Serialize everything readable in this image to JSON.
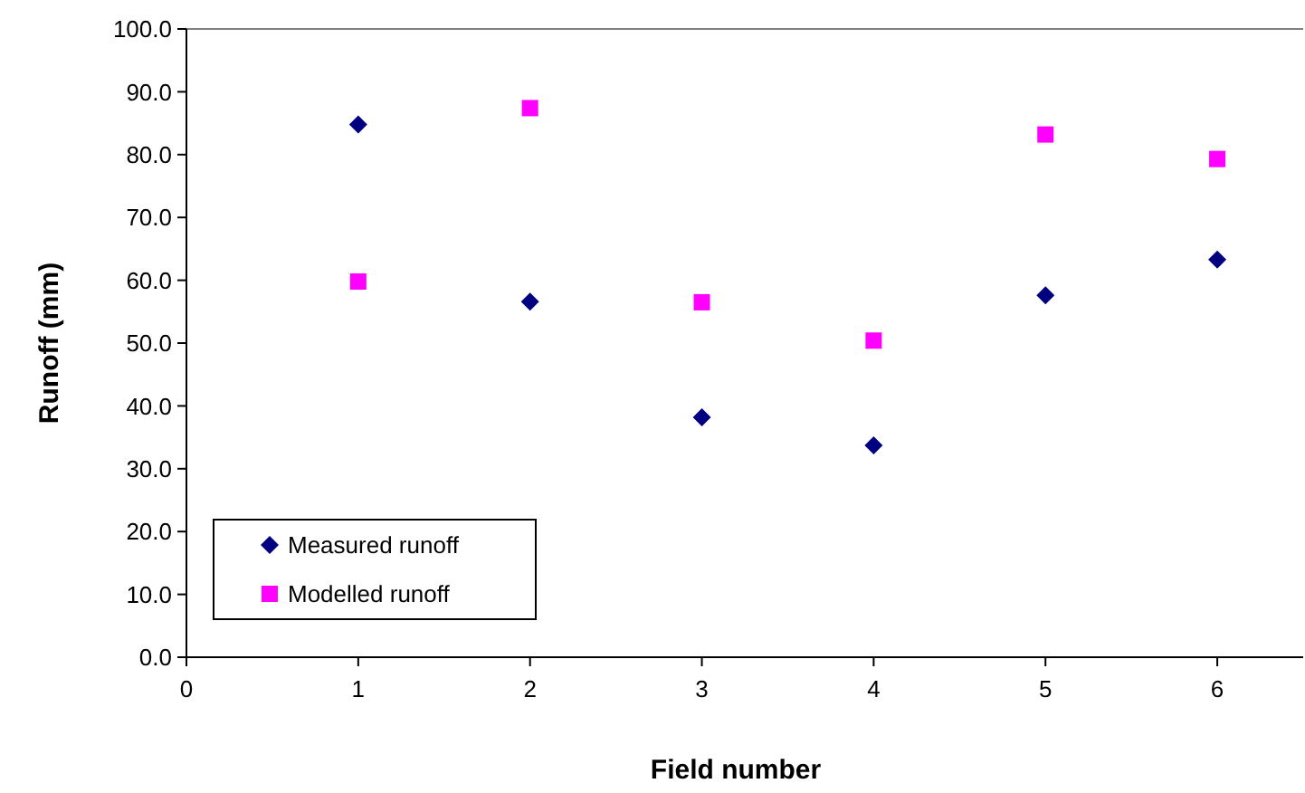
{
  "chart_data": {
    "type": "scatter",
    "xlabel": "Field number",
    "ylabel": "Runoff (mm)",
    "x": [
      1,
      2,
      3,
      4,
      5,
      6
    ],
    "series": [
      {
        "name": "Measured runoff",
        "color": "#000080",
        "marker": "diamond",
        "values": [
          84.8,
          56.6,
          38.2,
          33.7,
          57.6,
          63.3
        ]
      },
      {
        "name": "Modelled runoff",
        "color": "#ff00ff",
        "marker": "square",
        "values": [
          59.8,
          87.4,
          56.5,
          50.4,
          83.2,
          79.3
        ]
      }
    ],
    "xlim": [
      0,
      6.5
    ],
    "xticks": [
      0,
      1,
      2,
      3,
      4,
      5,
      6
    ],
    "ylim": [
      0,
      100
    ],
    "yticks": [
      {
        "value": 0,
        "label": "0.0"
      },
      {
        "value": 10,
        "label": "10.0"
      },
      {
        "value": 20,
        "label": "20.0"
      },
      {
        "value": 30,
        "label": "30.0"
      },
      {
        "value": 40,
        "label": "40.0"
      },
      {
        "value": 50,
        "label": "50.0"
      },
      {
        "value": 60,
        "label": "60.0"
      },
      {
        "value": 70,
        "label": "70.0"
      },
      {
        "value": 80,
        "label": "80.0"
      },
      {
        "value": 90,
        "label": "90.0"
      },
      {
        "value": 100,
        "label": "100.0"
      }
    ],
    "legend": "bottom left",
    "grid": false
  }
}
